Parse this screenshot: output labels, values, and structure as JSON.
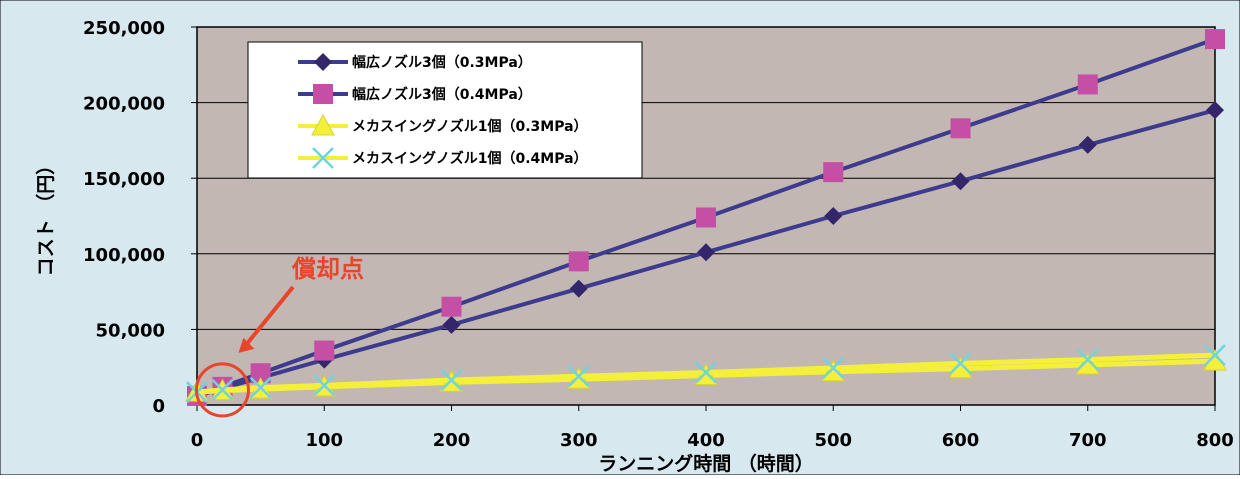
{
  "colors": {
    "outer_background": "#d7e8ef",
    "plot_background": "#c3b7b3",
    "gridline": "#000000",
    "annotation": "#e8452d"
  },
  "chart_data": {
    "type": "line",
    "title": "",
    "xlabel": "ランニング時間 （時間）",
    "ylabel": "コスト （円）",
    "xlim": [
      0,
      800
    ],
    "ylim": [
      0,
      250000
    ],
    "x_ticks": [
      "0",
      "100",
      "200",
      "300",
      "400",
      "500",
      "600",
      "700",
      "800"
    ],
    "y_ticks": [
      "0",
      "50,000",
      "100,000",
      "150,000",
      "200,000",
      "250,000"
    ],
    "grid": "horizontal",
    "legend_position": "top-left",
    "annotation": {
      "text": "償却点",
      "x": 20,
      "y": 10000
    },
    "series": [
      {
        "name": "幅広ノズル3個（0.3MPa）",
        "color": "#3d3b8e",
        "marker_color": "#34266b",
        "marker": "diamond",
        "x": [
          0,
          20,
          50,
          100,
          200,
          300,
          400,
          500,
          600,
          700,
          800
        ],
        "y": [
          6000,
          11000,
          18000,
          30000,
          53000,
          77000,
          101000,
          125000,
          148000,
          172000,
          195000
        ]
      },
      {
        "name": "幅広ノズル3個（0.4MPa）",
        "color": "#3d3b8e",
        "marker_color": "#c44fa4",
        "marker": "square",
        "x": [
          0,
          20,
          50,
          100,
          200,
          300,
          400,
          500,
          600,
          700,
          800
        ],
        "y": [
          6000,
          12000,
          21000,
          36000,
          65000,
          95000,
          124000,
          154000,
          183000,
          212000,
          242000
        ]
      },
      {
        "name": "メカスイングノズル1個（0.3MPa）",
        "color": "#f4f03a",
        "marker_color": "#f4f03a",
        "marker": "triangle",
        "x": [
          0,
          20,
          50,
          100,
          200,
          300,
          400,
          500,
          600,
          700,
          800
        ],
        "y": [
          8500,
          9500,
          10500,
          12000,
          15000,
          17000,
          19500,
          22000,
          24000,
          26500,
          29000
        ]
      },
      {
        "name": "メカスイングノズル1個（0.4MPa）",
        "color": "#f4f03a",
        "marker_color": "#6fd4e0",
        "marker": "x",
        "x": [
          0,
          20,
          50,
          100,
          200,
          300,
          400,
          500,
          600,
          700,
          800
        ],
        "y": [
          8500,
          10000,
          11500,
          13000,
          16500,
          19000,
          21500,
          24500,
          27500,
          30000,
          33000
        ]
      }
    ]
  }
}
